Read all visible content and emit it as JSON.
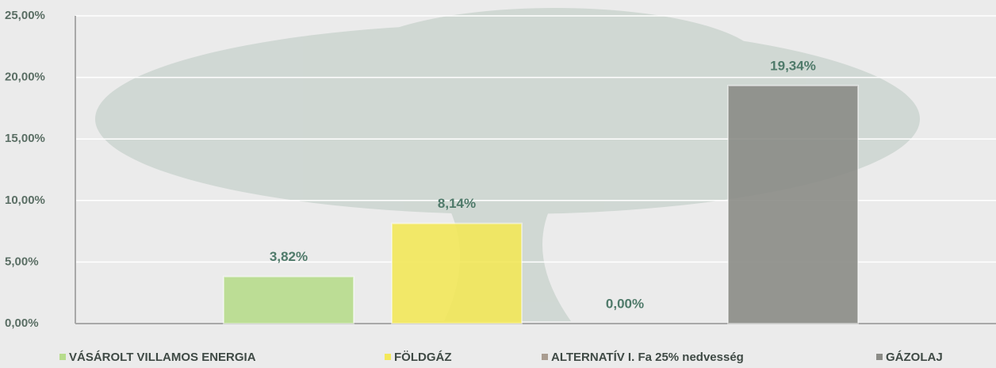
{
  "chart_data": {
    "type": "bar",
    "categories": [
      "VÁSÁROLT VILLAMOS ENERGIA",
      "FÖLDGÁZ",
      "ALTERNATÍV I. Fa 25% nedvesség",
      "GÁZOLAJ"
    ],
    "values": [
      3.82,
      8.14,
      0,
      19.34
    ],
    "value_labels": [
      "3,82%",
      "8,14%",
      "0,00%",
      "19,34%"
    ],
    "colors": [
      "#b7dc8c",
      "#f3e85a",
      "#a99c90",
      "#8b8c87"
    ],
    "ylim": [
      0,
      25
    ],
    "yticks": [
      {
        "value": 0,
        "label": "0,00%"
      },
      {
        "value": 5,
        "label": "5,00%"
      },
      {
        "value": 10,
        "label": "10,00%"
      },
      {
        "value": 15,
        "label": "15,00%"
      },
      {
        "value": 20,
        "label": "20,00%"
      },
      {
        "value": 25,
        "label": "25,00%"
      }
    ],
    "grid": true,
    "legend": "bottom"
  }
}
